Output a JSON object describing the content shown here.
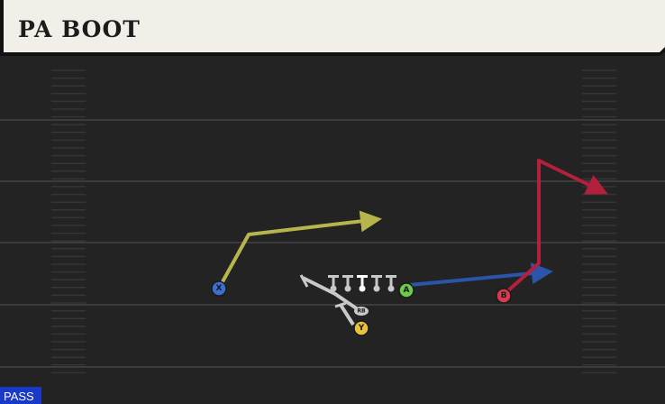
{
  "header": {
    "title": "PA BOOT"
  },
  "players": [
    {
      "label": "X"
    },
    {
      "label": "A"
    },
    {
      "label": "B"
    },
    {
      "label": "Y"
    }
  ],
  "formation": {
    "rb_label": "RB"
  },
  "footer": {
    "play_type": "PASS"
  }
}
